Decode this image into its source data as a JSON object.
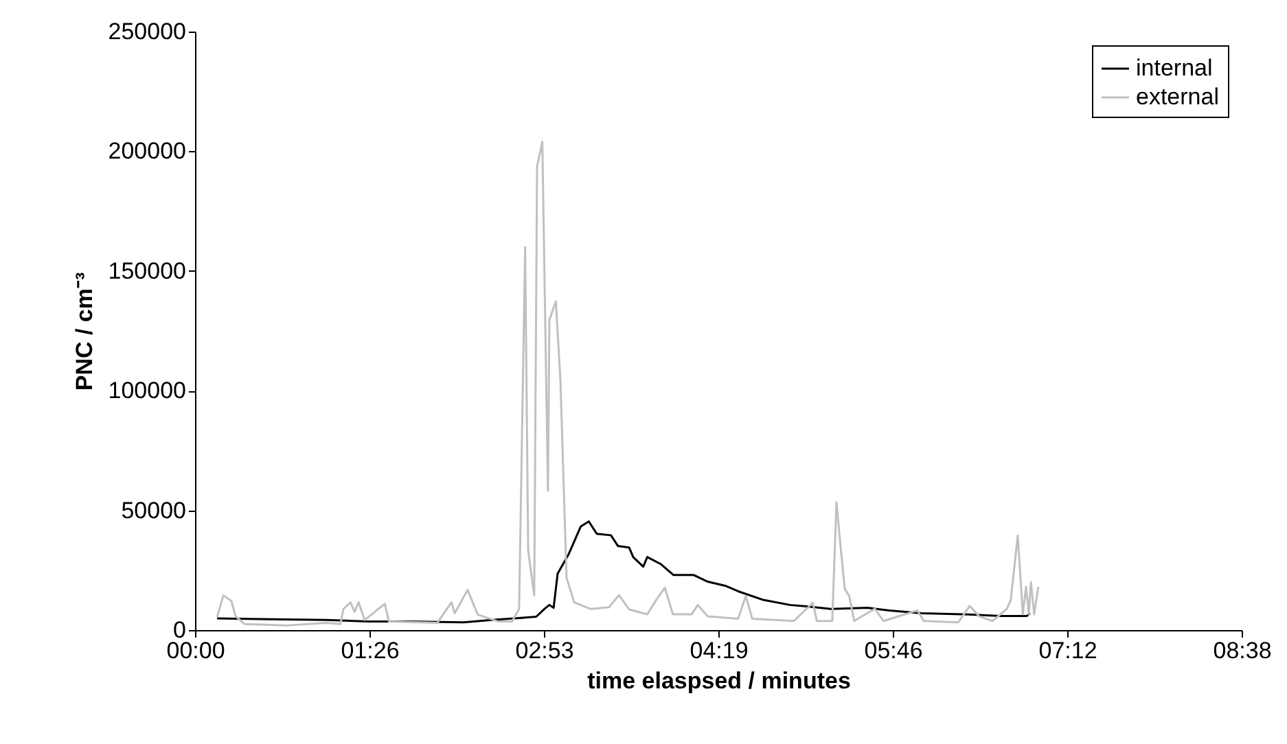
{
  "chart_data": {
    "type": "line",
    "xlabel": "time elaspsed / minutes",
    "ylabel": "PNC / cm⁻³",
    "xlim": [
      0,
      518.4
    ],
    "ylim": [
      0,
      250000
    ],
    "xticks": [
      {
        "value": 0,
        "label": "00:00"
      },
      {
        "value": 86.4,
        "label": "01:26"
      },
      {
        "value": 172.8,
        "label": "02:53"
      },
      {
        "value": 259.2,
        "label": "04:19"
      },
      {
        "value": 345.6,
        "label": "05:46"
      },
      {
        "value": 432,
        "label": "07:12"
      },
      {
        "value": 518.4,
        "label": "08:38"
      }
    ],
    "yticks": [
      0,
      50000,
      100000,
      150000,
      200000,
      250000
    ],
    "grid": false,
    "legend": "top right",
    "marker": "none",
    "line_style": "solid",
    "series": [
      {
        "name": "internal",
        "color": "#000000",
        "x": [
          10.9,
          38,
          65,
          86,
          106,
          133,
          147,
          160.5,
          169,
          173,
          175.5,
          177.6,
          179.6,
          182.3,
          185,
          191,
          195,
          199,
          206,
          209.5,
          215,
          217,
          222,
          224,
          230.6,
          237,
          247,
          254,
          262.6,
          269,
          281,
          294.6,
          303,
          315,
          333,
          344,
          360,
          383,
          399,
          412,
          413.6
        ],
        "values": [
          4900,
          4500,
          4200,
          3600,
          3600,
          3200,
          4200,
          5000,
          5600,
          8800,
          10500,
          9300,
          23600,
          27600,
          31600,
          43200,
          45400,
          40200,
          39600,
          35100,
          34500,
          30500,
          26500,
          30500,
          27600,
          23000,
          23000,
          20200,
          18500,
          16200,
          12700,
          10500,
          9900,
          8800,
          9300,
          8200,
          7000,
          6500,
          5900,
          5900,
          7000
        ]
      },
      {
        "name": "external",
        "color": "#c0c0c0",
        "x": [
          10.9,
          14,
          18,
          20,
          24.5,
          45,
          65,
          72,
          73.5,
          77,
          79,
          81,
          84,
          94,
          96,
          120,
          127,
          128.6,
          135,
          140,
          150,
          157,
          160.5,
          163.5,
          165,
          168,
          169.4,
          172,
          174.8,
          175.5,
          178.7,
          181,
          184,
          187.8,
          196,
          205,
          210,
          215,
          224,
          228.6,
          232.7,
          236.7,
          246,
          249,
          254,
          269,
          272.8,
          276,
          296.6,
          306,
          308,
          315.6,
          317.7,
          319.7,
          321.8,
          324,
          326.5,
          336.7,
          341,
          357.8,
          361,
          378,
          383.7,
          388.4,
          395,
          402,
          404,
          407.5,
          410,
          411.6,
          413,
          414,
          415.6,
          417.7
        ],
        "values": [
          5300,
          14500,
          12200,
          5900,
          2500,
          1900,
          3000,
          2500,
          8800,
          11600,
          7600,
          11600,
          4200,
          11000,
          3600,
          3000,
          11600,
          7000,
          16800,
          6500,
          3600,
          3600,
          8800,
          160000,
          33300,
          14500,
          193600,
          204000,
          58100,
          129600,
          137300,
          103900,
          21900,
          11600,
          8800,
          9500,
          14600,
          8600,
          6600,
          12800,
          17700,
          6600,
          6600,
          10500,
          5700,
          4700,
          14300,
          4700,
          3800,
          11400,
          3800,
          3800,
          53400,
          35200,
          17200,
          14300,
          3800,
          8900,
          3800,
          8200,
          3800,
          3200,
          10100,
          5700,
          3800,
          8800,
          12400,
          39500,
          6600,
          18100,
          6600,
          20000,
          6600,
          18100
        ]
      }
    ]
  }
}
